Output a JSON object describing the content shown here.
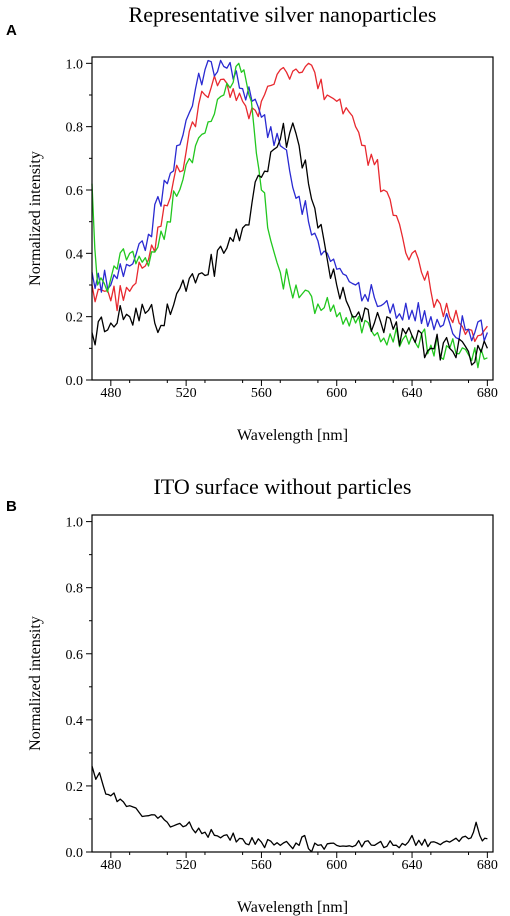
{
  "chart_data": [
    {
      "panel": "A",
      "type": "line",
      "title": "Representative silver nanoparticles",
      "xlabel": "Wavelength [nm]",
      "ylabel": "Normalized intensity",
      "xlim": [
        470,
        683
      ],
      "ylim": [
        0,
        1.02
      ],
      "xticks": [
        480,
        520,
        560,
        600,
        640,
        680
      ],
      "yticks": [
        0.0,
        0.2,
        0.4,
        0.6,
        0.8,
        1.0
      ],
      "grid": false,
      "series": [
        {
          "color": "#e8292f",
          "points": [
            [
              470,
              0.3
            ],
            [
              480,
              0.25
            ],
            [
              490,
              0.28
            ],
            [
              500,
              0.38
            ],
            [
              510,
              0.55
            ],
            [
              520,
              0.72
            ],
            [
              525,
              0.8
            ],
            [
              530,
              0.9
            ],
            [
              535,
              0.96
            ],
            [
              540,
              0.95
            ],
            [
              545,
              0.92
            ],
            [
              550,
              0.88
            ],
            [
              555,
              0.86
            ],
            [
              560,
              0.88
            ],
            [
              565,
              0.93
            ],
            [
              570,
              0.98
            ],
            [
              575,
              0.95
            ],
            [
              580,
              0.97
            ],
            [
              585,
              1.0
            ],
            [
              590,
              0.92
            ],
            [
              595,
              0.9
            ],
            [
              600,
              0.88
            ],
            [
              605,
              0.86
            ],
            [
              610,
              0.8
            ],
            [
              615,
              0.74
            ],
            [
              620,
              0.68
            ],
            [
              625,
              0.6
            ],
            [
              630,
              0.52
            ],
            [
              635,
              0.45
            ],
            [
              640,
              0.4
            ],
            [
              645,
              0.34
            ],
            [
              650,
              0.28
            ],
            [
              655,
              0.24
            ],
            [
              660,
              0.2
            ],
            [
              665,
              0.18
            ],
            [
              670,
              0.16
            ],
            [
              675,
              0.14
            ],
            [
              680,
              0.17
            ]
          ]
        },
        {
          "color": "#2a2ad1",
          "points": [
            [
              470,
              0.34
            ],
            [
              480,
              0.3
            ],
            [
              490,
              0.36
            ],
            [
              500,
              0.46
            ],
            [
              510,
              0.62
            ],
            [
              515,
              0.74
            ],
            [
              520,
              0.82
            ],
            [
              525,
              0.92
            ],
            [
              530,
              0.98
            ],
            [
              535,
              0.96
            ],
            [
              540,
              0.99
            ],
            [
              545,
              0.95
            ],
            [
              550,
              0.92
            ],
            [
              555,
              0.88
            ],
            [
              560,
              0.83
            ],
            [
              565,
              0.8
            ],
            [
              570,
              0.74
            ],
            [
              575,
              0.66
            ],
            [
              580,
              0.58
            ],
            [
              585,
              0.5
            ],
            [
              590,
              0.44
            ],
            [
              595,
              0.4
            ],
            [
              600,
              0.35
            ],
            [
              605,
              0.33
            ],
            [
              610,
              0.3
            ],
            [
              615,
              0.27
            ],
            [
              620,
              0.26
            ],
            [
              630,
              0.24
            ],
            [
              640,
              0.22
            ],
            [
              650,
              0.2
            ],
            [
              660,
              0.18
            ],
            [
              670,
              0.16
            ],
            [
              680,
              0.15
            ]
          ]
        },
        {
          "color": "#22c71f",
          "points": [
            [
              470,
              0.62
            ],
            [
              473,
              0.3
            ],
            [
              480,
              0.32
            ],
            [
              490,
              0.4
            ],
            [
              500,
              0.36
            ],
            [
              505,
              0.42
            ],
            [
              510,
              0.5
            ],
            [
              515,
              0.58
            ],
            [
              520,
              0.68
            ],
            [
              525,
              0.74
            ],
            [
              530,
              0.78
            ],
            [
              535,
              0.84
            ],
            [
              540,
              0.9
            ],
            [
              545,
              0.94
            ],
            [
              548,
              1.0
            ],
            [
              552,
              0.94
            ],
            [
              556,
              0.8
            ],
            [
              560,
              0.6
            ],
            [
              565,
              0.44
            ],
            [
              570,
              0.34
            ],
            [
              575,
              0.3
            ],
            [
              580,
              0.26
            ],
            [
              585,
              0.28
            ],
            [
              590,
              0.24
            ],
            [
              600,
              0.2
            ],
            [
              610,
              0.18
            ],
            [
              620,
              0.14
            ],
            [
              630,
              0.12
            ],
            [
              640,
              0.14
            ],
            [
              650,
              0.11
            ],
            [
              660,
              0.1
            ],
            [
              670,
              0.08
            ],
            [
              680,
              0.07
            ]
          ]
        },
        {
          "color": "#000000",
          "points": [
            [
              470,
              0.15
            ],
            [
              480,
              0.18
            ],
            [
              490,
              0.2
            ],
            [
              500,
              0.22
            ],
            [
              505,
              0.15
            ],
            [
              510,
              0.24
            ],
            [
              520,
              0.28
            ],
            [
              530,
              0.33
            ],
            [
              540,
              0.4
            ],
            [
              550,
              0.48
            ],
            [
              555,
              0.56
            ],
            [
              560,
              0.64
            ],
            [
              565,
              0.72
            ],
            [
              570,
              0.76
            ],
            [
              575,
              0.78
            ],
            [
              580,
              0.74
            ],
            [
              585,
              0.62
            ],
            [
              590,
              0.48
            ],
            [
              595,
              0.38
            ],
            [
              600,
              0.3
            ],
            [
              605,
              0.25
            ],
            [
              610,
              0.2
            ],
            [
              620,
              0.18
            ],
            [
              630,
              0.16
            ],
            [
              640,
              0.14
            ],
            [
              650,
              0.1
            ],
            [
              660,
              0.1
            ],
            [
              670,
              0.09
            ],
            [
              680,
              0.1
            ]
          ]
        }
      ]
    },
    {
      "panel": "B",
      "type": "line",
      "title": "ITO surface without particles",
      "xlabel": "Wavelength [nm]",
      "ylabel": "Normalized intensity",
      "xlim": [
        470,
        683
      ],
      "ylim": [
        0,
        1.02
      ],
      "xticks": [
        480,
        520,
        560,
        600,
        640,
        680
      ],
      "yticks": [
        0.0,
        0.2,
        0.4,
        0.6,
        0.8,
        1.0
      ],
      "grid": false,
      "series": [
        {
          "color": "#000000",
          "points": [
            [
              470,
              0.26
            ],
            [
              472,
              0.22
            ],
            [
              474,
              0.24
            ],
            [
              476,
              0.2
            ],
            [
              480,
              0.17
            ],
            [
              485,
              0.16
            ],
            [
              490,
              0.14
            ],
            [
              495,
              0.12
            ],
            [
              500,
              0.11
            ],
            [
              510,
              0.09
            ],
            [
              520,
              0.08
            ],
            [
              530,
              0.06
            ],
            [
              540,
              0.05
            ],
            [
              550,
              0.04
            ],
            [
              560,
              0.03
            ],
            [
              570,
              0.02
            ],
            [
              580,
              0.02
            ],
            [
              583,
              0.05
            ],
            [
              585,
              0.01
            ],
            [
              590,
              0.02
            ],
            [
              600,
              0.02
            ],
            [
              610,
              0.02
            ],
            [
              620,
              0.02
            ],
            [
              630,
              0.02
            ],
            [
              638,
              0.03
            ],
            [
              640,
              0.05
            ],
            [
              642,
              0.02
            ],
            [
              650,
              0.03
            ],
            [
              660,
              0.03
            ],
            [
              670,
              0.04
            ],
            [
              674,
              0.09
            ],
            [
              676,
              0.05
            ],
            [
              680,
              0.04
            ]
          ]
        }
      ]
    }
  ],
  "panel_letters": [
    "A",
    "B"
  ]
}
